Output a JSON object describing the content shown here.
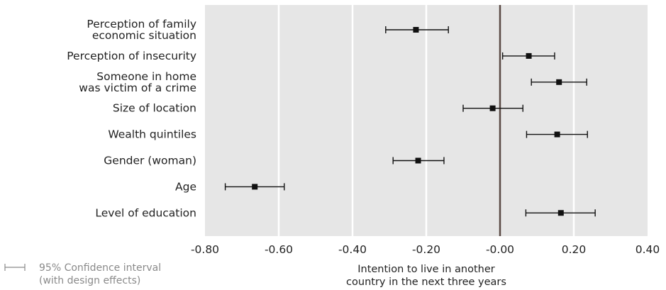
{
  "chart_data": {
    "type": "forest",
    "categories": [
      "Perception of family economic situation",
      "Perception of insecurity",
      "Someone in home was victim of a crime",
      "Size of location",
      "Wealth quintiles",
      "Gender (woman)",
      "Age",
      "Level of education"
    ],
    "category_lines": [
      [
        "Perception of family",
        "economic situation"
      ],
      [
        "Perception of insecurity"
      ],
      [
        "Someone in home",
        "was victim of a crime"
      ],
      [
        "Size of location"
      ],
      [
        "Wealth quintiles"
      ],
      [
        "Gender (woman)"
      ],
      [
        "Age"
      ],
      [
        "Level of education"
      ]
    ],
    "estimates": [
      -0.228,
      0.078,
      0.16,
      -0.02,
      0.155,
      -0.222,
      -0.665,
      0.165
    ],
    "ci_low": [
      -0.31,
      0.007,
      0.085,
      -0.1,
      0.072,
      -0.29,
      -0.745,
      0.07
    ],
    "ci_high": [
      -0.14,
      0.148,
      0.235,
      0.062,
      0.237,
      -0.152,
      -0.585,
      0.258
    ],
    "xlim": [
      -0.8,
      0.4
    ],
    "x_ticks": [
      "-0.80",
      "-0.60",
      "-0.40",
      "-0.20",
      "-0.00",
      "0.20",
      "0.40"
    ],
    "x_tick_values": [
      -0.8,
      -0.6,
      -0.4,
      -0.2,
      0.0,
      0.2,
      0.4
    ],
    "xlabel_lines": [
      "Intention to live in another",
      "country in the next three years"
    ],
    "reference_line": 0.0,
    "grid": true,
    "legend": {
      "position": "bottom-left",
      "lines": [
        "95% Confidence interval",
        "(with design effects)"
      ]
    },
    "colors": {
      "panel": "#e6e6e6",
      "grid": "#ffffff",
      "marks": "#111111",
      "reference": "#5a4a44",
      "legend": "#8a8a8a"
    }
  }
}
